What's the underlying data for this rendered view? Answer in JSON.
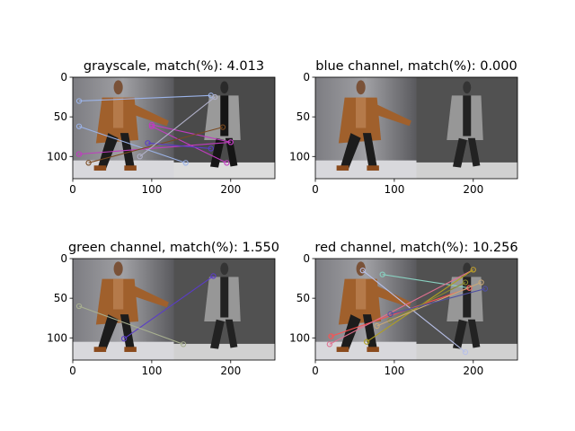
{
  "chart_data": [
    {
      "type": "scatter",
      "title": "grayscale, match(%): 4.013",
      "xlim": [
        0,
        256
      ],
      "ylim": [
        128,
        0
      ],
      "xticks": [
        0,
        100,
        200
      ],
      "yticks": [
        0,
        50,
        100
      ],
      "image_halves": [
        "color",
        "color"
      ],
      "matches": [
        {
          "p1": [
            8,
            30
          ],
          "p2": [
            175,
            23
          ],
          "color": "#9bb3e8"
        },
        {
          "p1": [
            8,
            62
          ],
          "p2": [
            143,
            108
          ],
          "color": "#9bb3e8"
        },
        {
          "p1": [
            100,
            60
          ],
          "p2": [
            200,
            82
          ],
          "color": "#c03cc0"
        },
        {
          "p1": [
            100,
            62
          ],
          "p2": [
            195,
            108
          ],
          "color": "#c03cc0"
        },
        {
          "p1": [
            8,
            97
          ],
          "p2": [
            200,
            82
          ],
          "color": "#c03cc0"
        },
        {
          "p1": [
            20,
            108
          ],
          "p2": [
            190,
            63
          ],
          "color": "#7a4a20"
        },
        {
          "p1": [
            95,
            83
          ],
          "p2": [
            175,
            90
          ],
          "color": "#5a3cc8"
        },
        {
          "p1": [
            85,
            100
          ],
          "p2": [
            180,
            25
          ],
          "color": "#b0b0c8"
        }
      ]
    },
    {
      "type": "scatter",
      "title": "blue channel, match(%): 0.000",
      "xlim": [
        0,
        256
      ],
      "ylim": [
        128,
        0
      ],
      "xticks": [
        0,
        100,
        200
      ],
      "yticks": [
        0,
        50,
        100
      ],
      "image_halves": [
        "color",
        "gray"
      ],
      "matches": []
    },
    {
      "type": "scatter",
      "title": "green channel, match(%): 1.550",
      "xlim": [
        0,
        256
      ],
      "ylim": [
        128,
        0
      ],
      "xticks": [
        0,
        100,
        200
      ],
      "yticks": [
        0,
        50,
        100
      ],
      "image_halves": [
        "color",
        "gray"
      ],
      "matches": [
        {
          "p1": [
            65,
            101
          ],
          "p2": [
            178,
            22
          ],
          "color": "#5a3cc8"
        },
        {
          "p1": [
            8,
            60
          ],
          "p2": [
            140,
            108
          ],
          "color": "#a8b090"
        }
      ]
    },
    {
      "type": "scatter",
      "title": "red channel, match(%): 10.256",
      "xlim": [
        0,
        256
      ],
      "ylim": [
        128,
        0
      ],
      "xticks": [
        0,
        100,
        200
      ],
      "yticks": [
        0,
        50,
        100
      ],
      "image_halves": [
        "color",
        "gray"
      ],
      "matches": [
        {
          "p1": [
            85,
            20
          ],
          "p2": [
            195,
            37
          ],
          "color": "#88d0c0"
        },
        {
          "p1": [
            60,
            15
          ],
          "p2": [
            190,
            118
          ],
          "color": "#b8c0e8"
        },
        {
          "p1": [
            20,
            98
          ],
          "p2": [
            195,
            37
          ],
          "color": "#ff5050"
        },
        {
          "p1": [
            18,
            108
          ],
          "p2": [
            200,
            14
          ],
          "color": "#e07090"
        },
        {
          "p1": [
            65,
            105
          ],
          "p2": [
            200,
            14
          ],
          "color": "#b0a020"
        },
        {
          "p1": [
            95,
            78
          ],
          "p2": [
            190,
            30
          ],
          "color": "#8a8a30"
        },
        {
          "p1": [
            78,
            85
          ],
          "p2": [
            210,
            30
          ],
          "color": "#c8a878"
        },
        {
          "p1": [
            95,
            70
          ],
          "p2": [
            215,
            38
          ],
          "color": "#5050a0"
        }
      ]
    }
  ]
}
